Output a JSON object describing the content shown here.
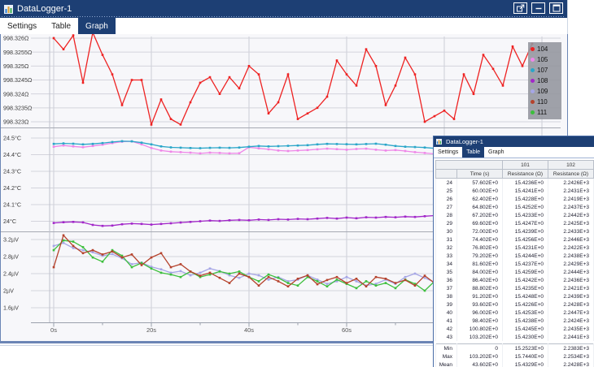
{
  "main_window": {
    "title": "DataLogger-1",
    "tabs": [
      {
        "label": "Settings",
        "active": false
      },
      {
        "label": "Table",
        "active": false
      },
      {
        "label": "Graph",
        "active": true
      }
    ],
    "window_buttons": [
      {
        "name": "float"
      },
      {
        "name": "minimize"
      },
      {
        "name": "maximize"
      }
    ]
  },
  "legend": [
    {
      "label": "104",
      "color": "#ee2222"
    },
    {
      "label": "105",
      "color": "#ef86e8"
    },
    {
      "label": "107",
      "color": "#2aa6c9"
    },
    {
      "label": "108",
      "color": "#a227c9"
    },
    {
      "label": "109",
      "color": "#a6a6e6"
    },
    {
      "label": "110",
      "color": "#b5422c"
    },
    {
      "label": "111",
      "color": "#3cbf3c"
    }
  ],
  "x_axis": {
    "ticks": [
      {
        "t": 0,
        "label": "0s"
      },
      {
        "t": 20,
        "label": "20s"
      },
      {
        "t": 40,
        "label": "40s"
      },
      {
        "t": 60,
        "label": "60s"
      }
    ],
    "minor_step": 10,
    "xlim": [
      0,
      104
    ]
  },
  "chart_data": [
    {
      "type": "line",
      "ylabel": "Resistance",
      "unit": "Ω",
      "ylim": [
        998.3228,
        998.3263
      ],
      "x_start": 0,
      "x_step": 2,
      "y_ticks": [
        {
          "v": 998.326,
          "label": "998.326Ω"
        },
        {
          "v": 998.3255,
          "label": "998.3255Ω"
        },
        {
          "v": 998.325,
          "label": "998.325Ω"
        },
        {
          "v": 998.3245,
          "label": "998.3245Ω"
        },
        {
          "v": 998.324,
          "label": "998.324Ω"
        },
        {
          "v": 998.3235,
          "label": "998.3235Ω"
        },
        {
          "v": 998.323,
          "label": "998.323Ω"
        }
      ],
      "series": [
        {
          "name": "104",
          "color": "#ee2222",
          "values": [
            998.326,
            998.3256,
            998.3261,
            998.3244,
            998.3262,
            998.3254,
            998.3247,
            998.3236,
            998.3245,
            998.3245,
            998.3229,
            998.3238,
            998.3231,
            998.3229,
            998.3237,
            998.3244,
            998.3246,
            998.324,
            998.3246,
            998.3242,
            998.325,
            998.3247,
            998.3233,
            998.3237,
            998.3247,
            998.3231,
            998.3233,
            998.3235,
            998.3239,
            998.3252,
            998.3247,
            998.3243,
            998.3256,
            998.325,
            998.3236,
            998.3243,
            998.3253,
            998.3247,
            998.323,
            998.3232,
            998.3234,
            998.3231,
            998.3247,
            998.324,
            998.3254,
            998.3249,
            998.3243,
            998.3257,
            998.325,
            998.3258
          ]
        }
      ]
    },
    {
      "type": "line",
      "ylabel": "Temperature",
      "unit": "°C",
      "ylim": [
        23.95,
        24.5
      ],
      "x_start": 0,
      "x_step": 2,
      "y_ticks": [
        {
          "v": 24.5,
          "label": "24.5°C"
        },
        {
          "v": 24.4,
          "label": "24.4°C"
        },
        {
          "v": 24.3,
          "label": "24.3°C"
        },
        {
          "v": 24.2,
          "label": "24.2°C"
        },
        {
          "v": 24.1,
          "label": "24.1°C"
        },
        {
          "v": 24.0,
          "label": "24°C"
        }
      ],
      "series": [
        {
          "name": "105",
          "color": "#ef86e8",
          "values": [
            24.448,
            24.455,
            24.45,
            24.445,
            24.452,
            24.46,
            24.47,
            24.478,
            24.48,
            24.462,
            24.44,
            24.425,
            24.418,
            24.415,
            24.412,
            24.408,
            24.412,
            24.41,
            24.408,
            24.409,
            24.445,
            24.438,
            24.432,
            24.425,
            24.422,
            24.425,
            24.428,
            24.432,
            24.436,
            24.433,
            24.43,
            24.434,
            24.436,
            24.43,
            24.425,
            24.428,
            24.422,
            24.415,
            24.41,
            24.405,
            24.398,
            24.39,
            24.382,
            24.37,
            24.36,
            24.35,
            24.342,
            24.338,
            24.336,
            24.335
          ]
        },
        {
          "name": "107",
          "color": "#2aa6c9",
          "values": [
            24.465,
            24.468,
            24.466,
            24.462,
            24.465,
            24.47,
            24.476,
            24.481,
            24.48,
            24.472,
            24.462,
            24.45,
            24.444,
            24.442,
            24.44,
            24.439,
            24.441,
            24.442,
            24.441,
            24.443,
            24.448,
            24.452,
            24.45,
            24.451,
            24.453,
            24.455,
            24.457,
            24.462,
            24.465,
            24.464,
            24.463,
            24.462,
            24.464,
            24.466,
            24.46,
            24.452,
            24.448,
            24.446,
            24.443,
            24.438,
            24.434,
            24.432,
            24.428,
            24.424,
            24.425,
            24.42,
            24.415,
            24.41,
            24.402,
            24.395
          ]
        },
        {
          "name": "108",
          "color": "#a227c9",
          "values": [
            23.99,
            23.994,
            23.996,
            23.993,
            23.978,
            23.972,
            23.974,
            23.982,
            23.986,
            23.984,
            23.98,
            23.984,
            23.988,
            23.992,
            23.996,
            24.0,
            24.004,
            24.002,
            24.006,
            24.008,
            24.006,
            24.01,
            24.008,
            24.012,
            24.01,
            24.014,
            24.012,
            24.016,
            24.02,
            24.016,
            24.022,
            24.018,
            24.024,
            24.022,
            24.026,
            24.024,
            24.028,
            24.026,
            24.03,
            24.034,
            24.03,
            24.036,
            24.04,
            24.044,
            24.04,
            24.038,
            24.042,
            24.04,
            24.048,
            24.075
          ]
        }
      ]
    },
    {
      "type": "line",
      "ylabel": "Voltage",
      "unit": "µV",
      "ylim": [
        1.5,
        3.4
      ],
      "x_start": 0,
      "x_step": 2,
      "y_ticks": [
        {
          "v": 3.2,
          "label": "3.2µV"
        },
        {
          "v": 2.8,
          "label": "2.8µV"
        },
        {
          "v": 2.4,
          "label": "2.4µV"
        },
        {
          "v": 2.0,
          "label": "2µV"
        },
        {
          "v": 1.6,
          "label": "1.6µV"
        }
      ],
      "series": [
        {
          "name": "109",
          "color": "#a6a6e6",
          "values": [
            3.05,
            3.12,
            3.0,
            2.95,
            2.9,
            2.82,
            2.86,
            2.76,
            2.62,
            2.66,
            2.56,
            2.5,
            2.42,
            2.46,
            2.36,
            2.42,
            2.52,
            2.46,
            2.36,
            2.3,
            2.4,
            2.36,
            2.26,
            2.32,
            2.22,
            2.26,
            2.36,
            2.26,
            2.16,
            2.22,
            2.32,
            2.22,
            2.12,
            2.16,
            2.26,
            2.16,
            2.32,
            2.4,
            2.3,
            2.2,
            2.1,
            2.26,
            2.16,
            2.3,
            2.26,
            2.36,
            2.26,
            2.2,
            2.36,
            2.48
          ]
        },
        {
          "name": "111",
          "color": "#3cbf3c",
          "values": [
            2.95,
            3.18,
            3.15,
            3.02,
            2.78,
            2.68,
            2.95,
            2.82,
            2.55,
            2.65,
            2.52,
            2.42,
            2.38,
            2.32,
            2.45,
            2.32,
            2.38,
            2.45,
            2.4,
            2.45,
            2.32,
            2.22,
            2.38,
            2.3,
            2.18,
            2.12,
            2.32,
            2.22,
            2.1,
            2.26,
            2.16,
            2.06,
            2.22,
            2.12,
            2.18,
            2.06,
            2.26,
            2.16,
            2.0,
            2.22,
            2.12,
            1.96,
            2.3,
            2.4,
            2.3,
            2.26,
            2.3,
            2.2,
            2.32,
            2.42
          ]
        },
        {
          "name": "110",
          "color": "#b5422c",
          "values": [
            2.55,
            3.3,
            3.05,
            2.88,
            2.95,
            2.85,
            2.92,
            2.78,
            2.85,
            2.6,
            2.78,
            2.88,
            2.55,
            2.62,
            2.45,
            2.35,
            2.42,
            2.3,
            2.18,
            2.4,
            2.32,
            2.12,
            2.32,
            2.22,
            2.1,
            2.28,
            2.36,
            2.15,
            2.25,
            2.32,
            2.18,
            2.28,
            2.1,
            2.32,
            2.28,
            2.18,
            2.25,
            2.12,
            2.35,
            2.18,
            1.85,
            2.12,
            2.42,
            2.22,
            2.28,
            2.18,
            2.28,
            2.38,
            2.3,
            2.45
          ]
        }
      ]
    }
  ],
  "table_window": {
    "title": "DataLogger-1",
    "tabs": [
      {
        "label": "Settings",
        "active": false
      },
      {
        "label": "Table",
        "active": true
      },
      {
        "label": "Graph",
        "active": false
      }
    ],
    "table": {
      "group_headers": [
        "",
        "101",
        "102"
      ],
      "columns": [
        "",
        "Time (s)",
        "Resistance (Ω)",
        "Resistance (Ω)"
      ],
      "rows": [
        [
          "24",
          "57.602E+0",
          "15.4236E+0",
          "2.2426E+3"
        ],
        [
          "25",
          "60.002E+0",
          "15.4241E+0",
          "2.2431E+3"
        ],
        [
          "26",
          "62.402E+0",
          "15.4228E+0",
          "2.2419E+3"
        ],
        [
          "27",
          "64.802E+0",
          "15.4252E+0",
          "2.2437E+3"
        ],
        [
          "28",
          "67.202E+0",
          "15.4233E+0",
          "2.2442E+3"
        ],
        [
          "29",
          "69.602E+0",
          "15.4247E+0",
          "2.2425E+3"
        ],
        [
          "30",
          "72.002E+0",
          "15.4239E+0",
          "2.2433E+3"
        ],
        [
          "31",
          "74.402E+0",
          "15.4256E+0",
          "2.2446E+3"
        ],
        [
          "32",
          "76.802E+0",
          "15.4231E+0",
          "2.2422E+3"
        ],
        [
          "33",
          "79.202E+0",
          "15.4244E+0",
          "2.2438E+3"
        ],
        [
          "34",
          "81.602E+0",
          "15.4237E+0",
          "2.2429E+3"
        ],
        [
          "35",
          "84.002E+0",
          "15.4259E+0",
          "2.2444E+3"
        ],
        [
          "36",
          "86.402E+0",
          "15.4242E+0",
          "2.2436E+3"
        ],
        [
          "37",
          "88.802E+0",
          "15.4235E+0",
          "2.2421E+3"
        ],
        [
          "38",
          "91.202E+0",
          "15.4248E+0",
          "2.2439E+3"
        ],
        [
          "39",
          "93.602E+0",
          "15.4226E+0",
          "2.2428E+3"
        ],
        [
          "40",
          "96.002E+0",
          "15.4253E+0",
          "2.2447E+3"
        ],
        [
          "41",
          "98.402E+0",
          "15.4238E+0",
          "2.2424E+3"
        ],
        [
          "42",
          "100.802E+0",
          "15.4245E+0",
          "2.2435E+3"
        ],
        [
          "43",
          "103.202E+0",
          "15.4230E+0",
          "2.2441E+3"
        ]
      ],
      "summary": [
        [
          "Min",
          "0",
          "15.2523E+0",
          "2.2383E+3"
        ],
        [
          "Max",
          "103.202E+0",
          "15.7440E+0",
          "2.2534E+3"
        ],
        [
          "Mean",
          "43.602E+0",
          "15.4329E+0",
          "2.2428E+3"
        ]
      ]
    }
  }
}
